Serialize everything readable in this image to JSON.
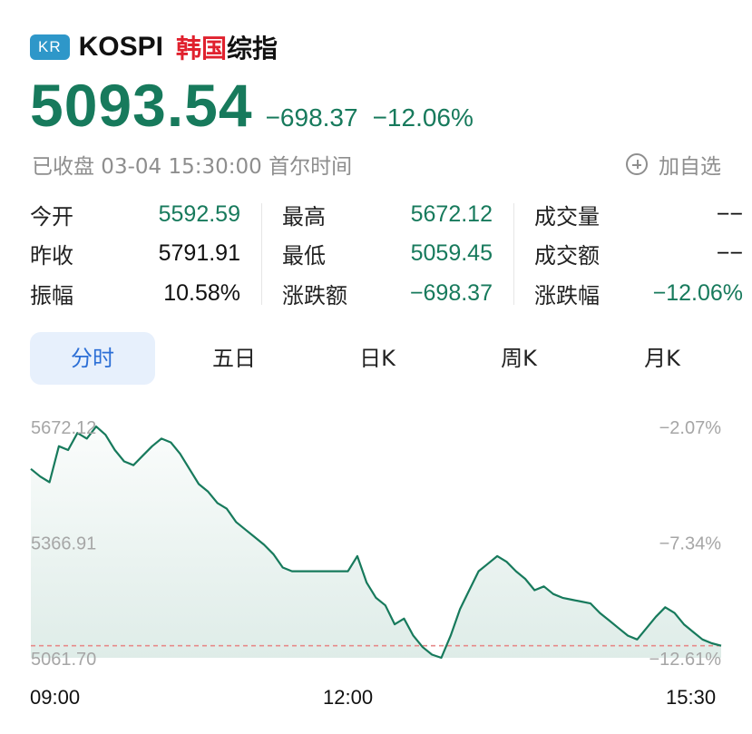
{
  "header": {
    "market_badge": "KR",
    "symbol": "KOSPI",
    "name_highlight": "韩国",
    "name_rest": "综指"
  },
  "quote": {
    "price": "5093.54",
    "change": "−698.37",
    "change_pct": "−12.06%",
    "status": "已收盘 03-04 15:30:00 首尔时间",
    "watchlist_label": "加自选"
  },
  "stats": {
    "open_label": "今开",
    "open_value": "5592.59",
    "prev_close_label": "昨收",
    "prev_close_value": "5791.91",
    "amplitude_label": "振幅",
    "amplitude_value": "10.58%",
    "high_label": "最高",
    "high_value": "5672.12",
    "low_label": "最低",
    "low_value": "5059.45",
    "change_amt_label": "涨跌额",
    "change_amt_value": "−698.37",
    "volume_label": "成交量",
    "volume_value": "−−",
    "turnover_label": "成交额",
    "turnover_value": "−−",
    "change_pct_label": "涨跌幅",
    "change_pct_value": "−12.06%"
  },
  "tabs": [
    "分时",
    "五日",
    "日K",
    "周K",
    "月K"
  ],
  "active_tab": "分时",
  "colors": {
    "down_green": "#177a5c",
    "accent_red": "#e0212e",
    "badge_blue": "#2e97c9",
    "active_tab_text": "#2c6fd6",
    "prev_close_line": "#e68a8a"
  },
  "chart_data": {
    "type": "line",
    "series": [
      {
        "values": [
          5560,
          5540,
          5525,
          5620,
          5610,
          5655,
          5640,
          5672,
          5650,
          5610,
          5580,
          5570,
          5595,
          5620,
          5640,
          5630,
          5600,
          5560,
          5520,
          5500,
          5470,
          5455,
          5420,
          5400,
          5380,
          5360,
          5335,
          5300,
          5290,
          5290,
          5290,
          5290,
          5290,
          5290,
          5290,
          5330,
          5260,
          5220,
          5200,
          5150,
          5165,
          5120,
          5090,
          5070,
          5061.7,
          5120,
          5190,
          5240,
          5290,
          5310,
          5330,
          5315,
          5290,
          5270,
          5240,
          5250,
          5230,
          5220,
          5215,
          5210,
          5205,
          5180,
          5160,
          5140,
          5120,
          5110,
          5140,
          5170,
          5195,
          5180,
          5150,
          5130,
          5110,
          5100,
          5093.54
        ]
      }
    ],
    "x_tick_labels": [
      "09:00",
      "12:00",
      "15:30"
    ],
    "y_tick_labels_left": [
      "5672.12",
      "5366.91",
      "5061.70"
    ],
    "y_tick_labels_right": [
      "−2.07%",
      "−7.34%",
      "−12.61%"
    ],
    "ylim": [
      5061.7,
      5672.12
    ],
    "reference_line": 5093.54,
    "grid": false,
    "legend": "none"
  }
}
